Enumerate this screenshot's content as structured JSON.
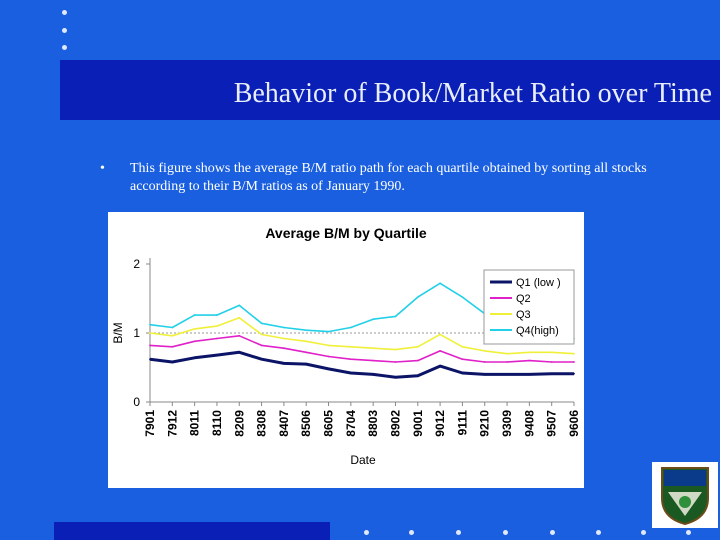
{
  "slide": {
    "title": "Behavior of Book/Market Ratio over Time",
    "bullet_symbol": "•",
    "bullet_text": "This figure shows the average B/M ratio path for each quartile obtained by sorting all stocks according to their B/M ratios as of January 1990.",
    "colors": {
      "background": "#1a5fe0",
      "band": "#0a1fb6",
      "dots": "#dfe8ff"
    }
  },
  "chart_data": {
    "type": "line",
    "title": "Average B/M by Quartile",
    "xlabel": "Date",
    "ylabel": "B/M",
    "ylim": [
      0,
      2
    ],
    "yticks": [
      0,
      1,
      2
    ],
    "categories": [
      "7901",
      "7912",
      "8011",
      "8110",
      "8209",
      "8308",
      "8407",
      "8506",
      "8605",
      "8704",
      "8803",
      "8902",
      "9001",
      "9012",
      "9111",
      "9210",
      "9309",
      "9408",
      "9507",
      "9606"
    ],
    "legend_position": "top-right",
    "reference_line": 1,
    "series": [
      {
        "name": "Q1 (low )",
        "color": "#0b1466",
        "values": [
          0.62,
          0.58,
          0.64,
          0.68,
          0.72,
          0.62,
          0.56,
          0.55,
          0.48,
          0.42,
          0.4,
          0.36,
          0.38,
          0.52,
          0.42,
          0.4,
          0.4,
          0.4,
          0.41,
          0.41
        ]
      },
      {
        "name": "Q2",
        "color": "#e020c8",
        "values": [
          0.82,
          0.8,
          0.88,
          0.92,
          0.96,
          0.82,
          0.78,
          0.72,
          0.66,
          0.62,
          0.6,
          0.58,
          0.6,
          0.74,
          0.62,
          0.58,
          0.58,
          0.6,
          0.58,
          0.58
        ]
      },
      {
        "name": "Q3",
        "color": "#f0f03a",
        "values": [
          1.0,
          0.96,
          1.06,
          1.1,
          1.22,
          0.98,
          0.92,
          0.88,
          0.82,
          0.8,
          0.78,
          0.76,
          0.8,
          0.98,
          0.8,
          0.74,
          0.7,
          0.72,
          0.72,
          0.7
        ]
      },
      {
        "name": "Q4(high)",
        "color": "#22d0e8",
        "values": [
          1.12,
          1.08,
          1.26,
          1.26,
          1.4,
          1.14,
          1.08,
          1.04,
          1.02,
          1.08,
          1.2,
          1.24,
          1.52,
          1.72,
          1.52,
          1.28,
          1.1,
          1.06,
          0.96,
          0.92
        ]
      }
    ]
  }
}
